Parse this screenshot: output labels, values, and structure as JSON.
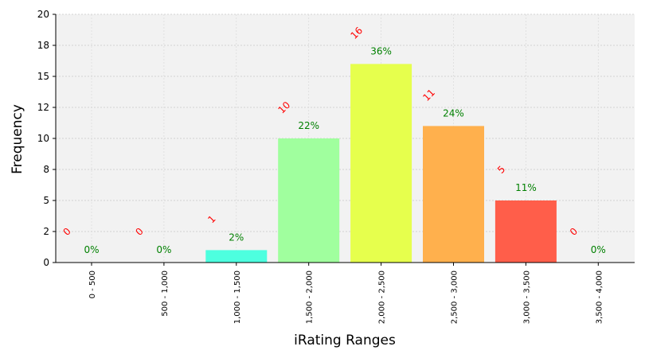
{
  "chart_data": {
    "type": "bar",
    "title": "",
    "xlabel": "iRating Ranges",
    "ylabel": "Frequency",
    "ylim": [
      0,
      20
    ],
    "yticks": [
      {
        "value": 0,
        "label": "0"
      },
      {
        "value": 2.5,
        "label": "2"
      },
      {
        "value": 5,
        "label": "5"
      },
      {
        "value": 7.5,
        "label": "8"
      },
      {
        "value": 10,
        "label": "10"
      },
      {
        "value": 12.5,
        "label": "12"
      },
      {
        "value": 15,
        "label": "15"
      },
      {
        "value": 17.5,
        "label": "18"
      },
      {
        "value": 20,
        "label": "20"
      }
    ],
    "grid": true,
    "categories": [
      "0 - 500",
      "500 - 1,000",
      "1,000 - 1,500",
      "1,500 - 2,000",
      "2,000 - 2,500",
      "2,500 - 3,000",
      "3,000 - 3,500",
      "3,500 - 4,000"
    ],
    "values": [
      0,
      0,
      1,
      10,
      16,
      11,
      5,
      0
    ],
    "bar_heights": [
      0,
      0,
      1,
      10,
      16,
      11,
      5,
      0
    ],
    "percent_labels": [
      "0%",
      "0%",
      "2%",
      "22%",
      "36%",
      "24%",
      "11%",
      "0%"
    ],
    "count_labels": [
      "0",
      "0",
      "1",
      "10",
      "16",
      "11",
      "5",
      "0"
    ],
    "bar_colors": [
      "#4dffdf",
      "#4dffdf",
      "#4dffdf",
      "#a0ff9e",
      "#e6ff4d",
      "#ffb04d",
      "#ff5e4a",
      "#ff5e4a"
    ],
    "plot_background": "#f2f2f2",
    "count_label_color": "#ff0000",
    "percent_label_color": "#008000"
  }
}
